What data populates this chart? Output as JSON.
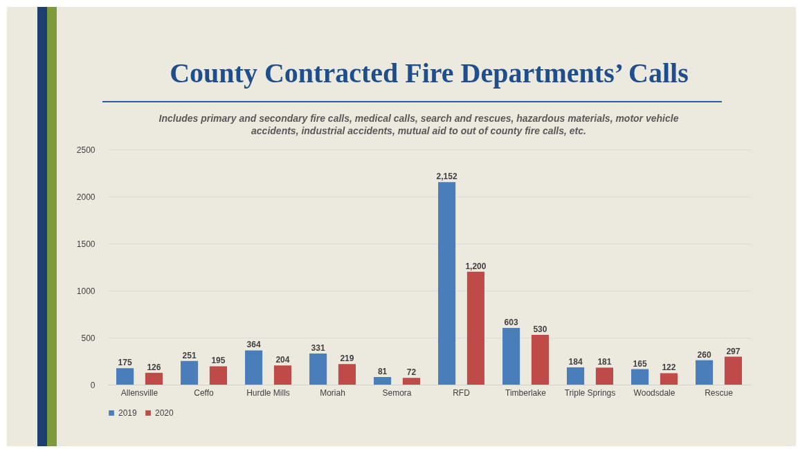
{
  "chart_data": {
    "type": "bar",
    "title": "County Contracted Fire Departments’ Calls",
    "subtitle": "Includes primary and secondary fire calls, medical calls, search and rescues, hazardous materials, motor vehicle accidents, industrial accidents, mutual aid to out of county fire calls, etc.",
    "categories": [
      "Allensville",
      "Ceffo",
      "Hurdle Mills",
      "Moriah",
      "Semora",
      "RFD",
      "Timberlake",
      "Triple Springs",
      "Woodsdale",
      "Rescue"
    ],
    "series": [
      {
        "name": "2019",
        "color": "#4a7ebb",
        "values": [
          175,
          251,
          364,
          331,
          81,
          2152,
          603,
          184,
          165,
          260
        ],
        "value_labels": [
          "175",
          "251",
          "364",
          "331",
          "81",
          "2,152",
          "603",
          "184",
          "165",
          "260"
        ]
      },
      {
        "name": "2020",
        "color": "#be4b48",
        "values": [
          126,
          195,
          204,
          219,
          72,
          1200,
          530,
          181,
          122,
          297
        ],
        "value_labels": [
          "126",
          "195",
          "204",
          "219",
          "72",
          "1,200",
          "530",
          "181",
          "122",
          "297"
        ]
      }
    ],
    "ylim": [
      0,
      2500
    ],
    "yticks": [
      0,
      500,
      1000,
      1500,
      2000,
      2500
    ],
    "grid": "y",
    "legend": "bottom"
  }
}
